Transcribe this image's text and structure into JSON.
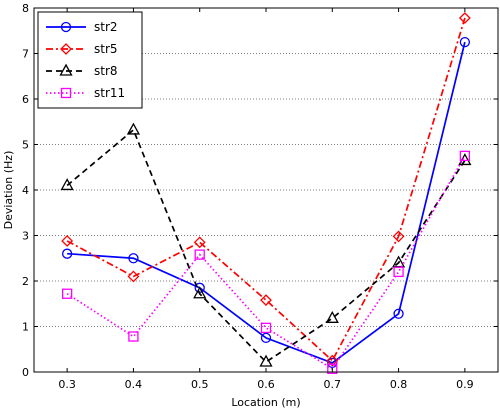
{
  "chart_data": {
    "type": "line",
    "title": "",
    "xlabel": "Location (m)",
    "ylabel": "Deviation (Hz)",
    "x": [
      0.3,
      0.4,
      0.5,
      0.6,
      0.7,
      0.8,
      0.9
    ],
    "xlim": [
      0.25,
      0.95
    ],
    "ylim": [
      0,
      8
    ],
    "x_ticks": [
      "0.3",
      "0.4",
      "0.5",
      "0.6",
      "0.7",
      "0.8",
      "0.9"
    ],
    "y_ticks": [
      "0",
      "1",
      "2",
      "3",
      "4",
      "5",
      "6",
      "7",
      "8"
    ],
    "grid": "horizontal dotted",
    "legend_position": "top-left",
    "series": [
      {
        "name": "str2",
        "color": "#0000ff",
        "line_style": "solid",
        "marker": "circle",
        "values": [
          2.6,
          2.5,
          1.85,
          0.75,
          0.2,
          1.28,
          7.25
        ]
      },
      {
        "name": "str5",
        "color": "#ff0000",
        "line_style": "dash-dot",
        "marker": "diamond",
        "values": [
          2.88,
          2.1,
          2.85,
          1.58,
          0.25,
          2.98,
          7.78
        ]
      },
      {
        "name": "str8",
        "color": "#000000",
        "line_style": "dashed",
        "marker": "triangle",
        "values": [
          4.1,
          5.32,
          1.72,
          0.22,
          1.18,
          2.4,
          4.65
        ]
      },
      {
        "name": "str11",
        "color": "#ff00ff",
        "line_style": "dotted",
        "marker": "square",
        "values": [
          1.72,
          0.78,
          2.58,
          0.97,
          0.07,
          2.2,
          4.75
        ]
      }
    ]
  }
}
